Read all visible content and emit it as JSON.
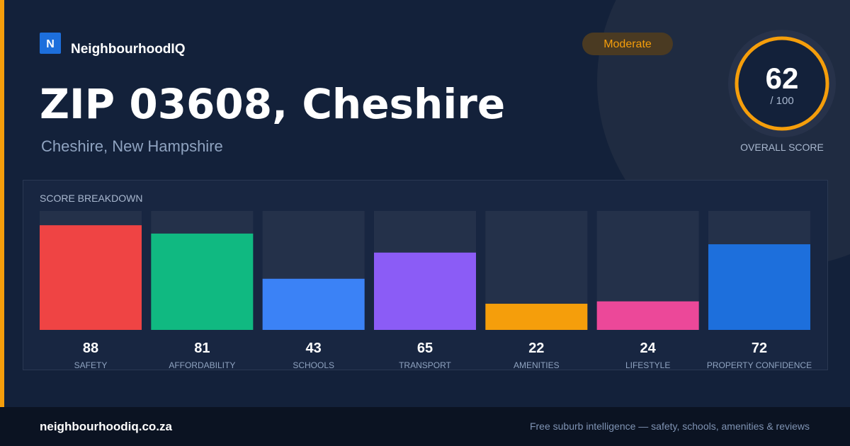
{
  "brand": {
    "logo": "N",
    "name": "NeighbourhoodIQ"
  },
  "title": "ZIP 03608, Cheshire",
  "subtitle": "Cheshire, New Hampshire",
  "badge": "Moderate",
  "score": {
    "value": 62,
    "out_of": "/ 100",
    "label": "OVERALL SCORE"
  },
  "chart_data": {
    "type": "bar",
    "title": "SCORE BREAKDOWN",
    "categories": [
      "SAFETY",
      "AFFORDABILITY",
      "SCHOOLS",
      "TRANSPORT",
      "AMENITIES",
      "LIFESTYLE",
      "PROPERTY CONFIDENCE"
    ],
    "values": [
      88,
      81,
      43,
      65,
      22,
      24,
      72
    ],
    "colors": [
      "#ef4444",
      "#10b981",
      "#3b82f6",
      "#8b5cf6",
      "#f59e0b",
      "#ec4899",
      "#1d6fdc"
    ],
    "ylim": [
      0,
      100
    ]
  },
  "footer": {
    "url": "neighbourhoodiq.co.za",
    "tagline": "Free suburb intelligence — safety, schools, amenities & reviews"
  }
}
